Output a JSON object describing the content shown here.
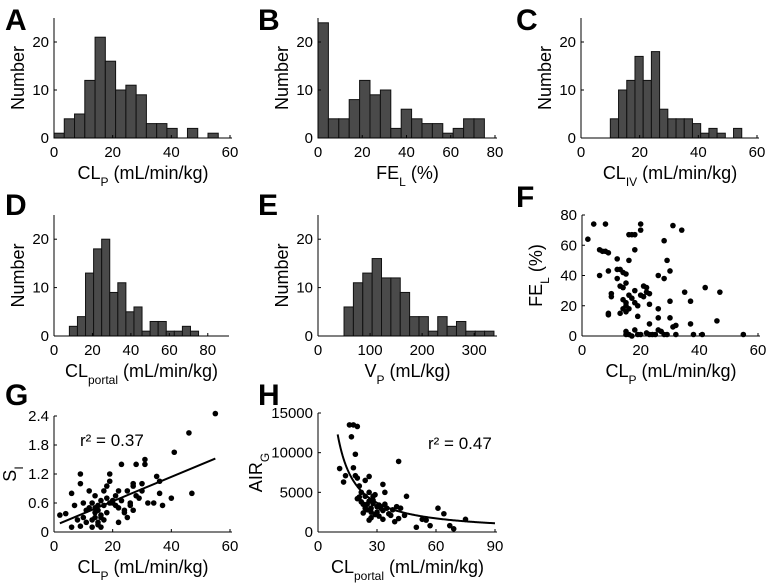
{
  "chart_data": [
    {
      "panel": "A",
      "type": "bar",
      "xlabel": [
        "CL",
        "P",
        " (mL/min/kg)"
      ],
      "ylabel": [
        "Number",
        "",
        ""
      ],
      "xlim": [
        0,
        60
      ],
      "ylim": [
        0,
        25
      ],
      "xticks": [
        0,
        20,
        40,
        60
      ],
      "yticks": [
        0,
        10,
        20
      ],
      "bins": {
        "start": 0,
        "width": 3.5,
        "counts": [
          1,
          4,
          5,
          12,
          21,
          16,
          10,
          11,
          9,
          3,
          3,
          2,
          0,
          2,
          0,
          1
        ]
      }
    },
    {
      "panel": "B",
      "type": "bar",
      "xlabel": [
        "FE",
        "L",
        " (%)"
      ],
      "ylabel": [
        "Number",
        "",
        ""
      ],
      "xlim": [
        0,
        80
      ],
      "ylim": [
        0,
        25
      ],
      "xticks": [
        0,
        20,
        40,
        60,
        80
      ],
      "yticks": [
        0,
        10,
        20
      ],
      "bins": {
        "start": 0,
        "width": 4.7,
        "counts": [
          24,
          4,
          4,
          8,
          12,
          9,
          10,
          2,
          6,
          4,
          3,
          3,
          1,
          2,
          4,
          4
        ]
      }
    },
    {
      "panel": "C",
      "type": "bar",
      "xlabel": [
        "CL",
        "IV",
        " (mL/min/kg)"
      ],
      "ylabel": [
        "Number",
        "",
        ""
      ],
      "xlim": [
        0,
        60
      ],
      "ylim": [
        0,
        25
      ],
      "xticks": [
        0,
        20,
        40,
        60
      ],
      "yticks": [
        0,
        10,
        20
      ],
      "bins": {
        "start": 10,
        "width": 2.8,
        "counts": [
          4,
          10,
          12,
          17,
          12,
          18,
          6,
          4,
          4,
          4,
          3,
          1,
          2,
          1,
          0,
          2
        ]
      }
    },
    {
      "panel": "D",
      "type": "bar",
      "xlabel": [
        "CL",
        "portal",
        " (mL/min/kg)"
      ],
      "ylabel": [
        "Number",
        "",
        ""
      ],
      "xlim": [
        0,
        90
      ],
      "ylim": [
        0,
        25
      ],
      "xticks": [
        0,
        20,
        40,
        60,
        80
      ],
      "yticks": [
        0,
        10,
        20
      ],
      "bins": {
        "start": 8,
        "width": 4.2,
        "counts": [
          2,
          4,
          13,
          18,
          20,
          9,
          11,
          5,
          6,
          1,
          3,
          3,
          1,
          1,
          2,
          1
        ]
      }
    },
    {
      "panel": "E",
      "type": "bar",
      "xlabel": [
        "V",
        "P",
        " (mL/kg)"
      ],
      "ylabel": [
        "Number",
        "",
        ""
      ],
      "xlim": [
        0,
        340
      ],
      "ylim": [
        0,
        25
      ],
      "xticks": [
        0,
        100,
        200,
        300
      ],
      "yticks": [
        0,
        10,
        20
      ],
      "bins": {
        "start": 50,
        "width": 18,
        "counts": [
          6,
          11,
          13,
          16,
          12,
          12,
          9,
          4,
          4,
          1,
          4,
          2,
          3,
          1,
          1,
          1
        ]
      }
    },
    {
      "panel": "F",
      "type": "scatter",
      "xlabel": [
        "CL",
        "P",
        " (mL/min/kg)"
      ],
      "ylabel": [
        "FE",
        "L",
        "  (%)"
      ],
      "xlim": [
        0,
        60
      ],
      "ylim": [
        0,
        80
      ],
      "xticks": [
        0,
        20,
        40,
        60
      ],
      "yticks": [
        0,
        20,
        40,
        60,
        80
      ],
      "points": [
        [
          2,
          64
        ],
        [
          4,
          74
        ],
        [
          8,
          74
        ],
        [
          6,
          57
        ],
        [
          7,
          56
        ],
        [
          8,
          56
        ],
        [
          9,
          55
        ],
        [
          6,
          40
        ],
        [
          9,
          43
        ],
        [
          10,
          28
        ],
        [
          10,
          26
        ],
        [
          9,
          15
        ],
        [
          9,
          14
        ],
        [
          12,
          51
        ],
        [
          12,
          44
        ],
        [
          13,
          44
        ],
        [
          14,
          42
        ],
        [
          15,
          41
        ],
        [
          12,
          38
        ],
        [
          13,
          33
        ],
        [
          14,
          32
        ],
        [
          15,
          35
        ],
        [
          16,
          50
        ],
        [
          16,
          67
        ],
        [
          17,
          67
        ],
        [
          18,
          67
        ],
        [
          20,
          74
        ],
        [
          20,
          70
        ],
        [
          18,
          57
        ],
        [
          14,
          24
        ],
        [
          15,
          22
        ],
        [
          15,
          20
        ],
        [
          16,
          18
        ],
        [
          16,
          27
        ],
        [
          17,
          25
        ],
        [
          18,
          30
        ],
        [
          18,
          22
        ],
        [
          19,
          20
        ],
        [
          20,
          27
        ],
        [
          21,
          33
        ],
        [
          22,
          32
        ],
        [
          22,
          29
        ],
        [
          23,
          28
        ],
        [
          21,
          26
        ],
        [
          23,
          21
        ],
        [
          19,
          13
        ],
        [
          18,
          4
        ],
        [
          15,
          3
        ],
        [
          15,
          1
        ],
        [
          16,
          1
        ],
        [
          17,
          0
        ],
        [
          19,
          1
        ],
        [
          20,
          1
        ],
        [
          23,
          8
        ],
        [
          22,
          2
        ],
        [
          23,
          1
        ],
        [
          24,
          1
        ],
        [
          25,
          1
        ],
        [
          26,
          12
        ],
        [
          26,
          18
        ],
        [
          26,
          40
        ],
        [
          28,
          38
        ],
        [
          28,
          63
        ],
        [
          29,
          50
        ],
        [
          30,
          43
        ],
        [
          31,
          73
        ],
        [
          34,
          70
        ],
        [
          30,
          23
        ],
        [
          30,
          12
        ],
        [
          31,
          6
        ],
        [
          32,
          7
        ],
        [
          26,
          4
        ],
        [
          27,
          3
        ],
        [
          28,
          1
        ],
        [
          29,
          1
        ],
        [
          32,
          1
        ],
        [
          35,
          29
        ],
        [
          37,
          23
        ],
        [
          37,
          8
        ],
        [
          38,
          1
        ],
        [
          41,
          1
        ],
        [
          42,
          32
        ],
        [
          47,
          29
        ],
        [
          46,
          10
        ],
        [
          55,
          1
        ],
        [
          14,
          18
        ],
        [
          15,
          16
        ],
        [
          13,
          15
        ]
      ]
    },
    {
      "panel": "G",
      "type": "scatter",
      "xlabel": [
        "CL",
        "P",
        " (mL/min/kg)"
      ],
      "ylabel": [
        "S",
        "I",
        ""
      ],
      "xlim": [
        0,
        60
      ],
      "ylim": [
        0,
        2.4
      ],
      "xticks": [
        0,
        20,
        40,
        60
      ],
      "yticks": [
        0,
        0.6,
        1.2,
        1.8,
        2.4
      ],
      "annotation": "r² = 0.37",
      "fit": {
        "type": "linear",
        "from": [
          2,
          0.18
        ],
        "to": [
          55,
          1.52
        ]
      },
      "points": [
        [
          2,
          0.35
        ],
        [
          4,
          0.38
        ],
        [
          6,
          0.8
        ],
        [
          6,
          0.1
        ],
        [
          7,
          0.55
        ],
        [
          8,
          0.25
        ],
        [
          9,
          1.0
        ],
        [
          9,
          1.2
        ],
        [
          9,
          0.12
        ],
        [
          10,
          0.3
        ],
        [
          11,
          0.45
        ],
        [
          12,
          0.85
        ],
        [
          12,
          0.5
        ],
        [
          13,
          0.25
        ],
        [
          13,
          0.1
        ],
        [
          13,
          0.6
        ],
        [
          14,
          0.75
        ],
        [
          14,
          0.5
        ],
        [
          14,
          0.4
        ],
        [
          14,
          0.3
        ],
        [
          15,
          0.15
        ],
        [
          15,
          0.2
        ],
        [
          15,
          0.55
        ],
        [
          15,
          0.45
        ],
        [
          16,
          0.3
        ],
        [
          16,
          0.65
        ],
        [
          16,
          0.35
        ],
        [
          17,
          0.85
        ],
        [
          17,
          0.55
        ],
        [
          18,
          0.95
        ],
        [
          18,
          0.7
        ],
        [
          18,
          0.4
        ],
        [
          19,
          0.6
        ],
        [
          19,
          1.2
        ],
        [
          19,
          1.05
        ],
        [
          20,
          0.65
        ],
        [
          20,
          0.6
        ],
        [
          21,
          0.55
        ],
        [
          21,
          0.75
        ],
        [
          22,
          0.85
        ],
        [
          22,
          0.5
        ],
        [
          22,
          0.2
        ],
        [
          23,
          1.4
        ],
        [
          23,
          0.65
        ],
        [
          24,
          0.45
        ],
        [
          24,
          0.4
        ],
        [
          25,
          0.85
        ],
        [
          25,
          0.3
        ],
        [
          26,
          0.55
        ],
        [
          26,
          0.6
        ],
        [
          27,
          0.95
        ],
        [
          27,
          1.0
        ],
        [
          27,
          0.45
        ],
        [
          28,
          1.4
        ],
        [
          28,
          0.75
        ],
        [
          29,
          0.7
        ],
        [
          30,
          1.0
        ],
        [
          30,
          0.85
        ],
        [
          31,
          1.4
        ],
        [
          31,
          1.5
        ],
        [
          32,
          0.6
        ],
        [
          34,
          0.6
        ],
        [
          35,
          1.15
        ],
        [
          36,
          0.8
        ],
        [
          36,
          1.05
        ],
        [
          37,
          0.55
        ],
        [
          40,
          0.7
        ],
        [
          41,
          1.65
        ],
        [
          46,
          2.05
        ],
        [
          47,
          0.8
        ],
        [
          55,
          2.45
        ],
        [
          10,
          0.6
        ],
        [
          11,
          0.2
        ],
        [
          16,
          0.1
        ],
        [
          17,
          0.25
        ]
      ]
    },
    {
      "panel": "H",
      "type": "scatter",
      "xlabel": [
        "CL",
        "portal",
        " (mL/min/kg)"
      ],
      "ylabel": [
        "AIR",
        "G",
        ""
      ],
      "xlim": [
        0,
        90
      ],
      "ylim": [
        0,
        15000
      ],
      "xticks": [
        0,
        30,
        60,
        90
      ],
      "yticks": [
        0,
        5000,
        10000,
        15000
      ],
      "annotation": "r² = 0.47",
      "fit": {
        "type": "power",
        "a": 154500,
        "b": -1.099,
        "xrange": [
          10,
          90
        ]
      },
      "points": [
        [
          11,
          8000
        ],
        [
          13,
          6300
        ],
        [
          14,
          7100
        ],
        [
          16,
          13500
        ],
        [
          18,
          13500
        ],
        [
          17,
          12000
        ],
        [
          20,
          13300
        ],
        [
          19,
          9800
        ],
        [
          18,
          8100
        ],
        [
          19,
          7100
        ],
        [
          20,
          6800
        ],
        [
          21,
          5800
        ],
        [
          21,
          4400
        ],
        [
          22,
          5000
        ],
        [
          20,
          4200
        ],
        [
          22,
          3800
        ],
        [
          23,
          3500
        ],
        [
          23,
          2400
        ],
        [
          24,
          6500
        ],
        [
          24,
          4500
        ],
        [
          25,
          3500
        ],
        [
          25,
          2800
        ],
        [
          26,
          7000
        ],
        [
          26,
          5000
        ],
        [
          26,
          3900
        ],
        [
          26,
          1500
        ],
        [
          27,
          2500
        ],
        [
          27,
          3000
        ],
        [
          28,
          4500
        ],
        [
          28,
          3600
        ],
        [
          29,
          4700
        ],
        [
          29,
          2200
        ],
        [
          30,
          3200
        ],
        [
          30,
          2500
        ],
        [
          31,
          2000
        ],
        [
          32,
          3000
        ],
        [
          33,
          6000
        ],
        [
          33,
          2700
        ],
        [
          33,
          1600
        ],
        [
          34,
          5000
        ],
        [
          34,
          3500
        ],
        [
          35,
          3000
        ],
        [
          36,
          2300
        ],
        [
          37,
          2100
        ],
        [
          38,
          2800
        ],
        [
          39,
          1300
        ],
        [
          40,
          3200
        ],
        [
          41,
          8900
        ],
        [
          41,
          1700
        ],
        [
          42,
          3000
        ],
        [
          44,
          2100
        ],
        [
          45,
          4500
        ],
        [
          50,
          600
        ],
        [
          53,
          1600
        ],
        [
          55,
          1500
        ],
        [
          57,
          800
        ],
        [
          61,
          3000
        ],
        [
          64,
          2300
        ],
        [
          67,
          800
        ],
        [
          69,
          400
        ],
        [
          75,
          1600
        ],
        [
          24,
          3000
        ],
        [
          27,
          1800
        ],
        [
          28,
          4000
        ],
        [
          31,
          3400
        ]
      ]
    }
  ]
}
